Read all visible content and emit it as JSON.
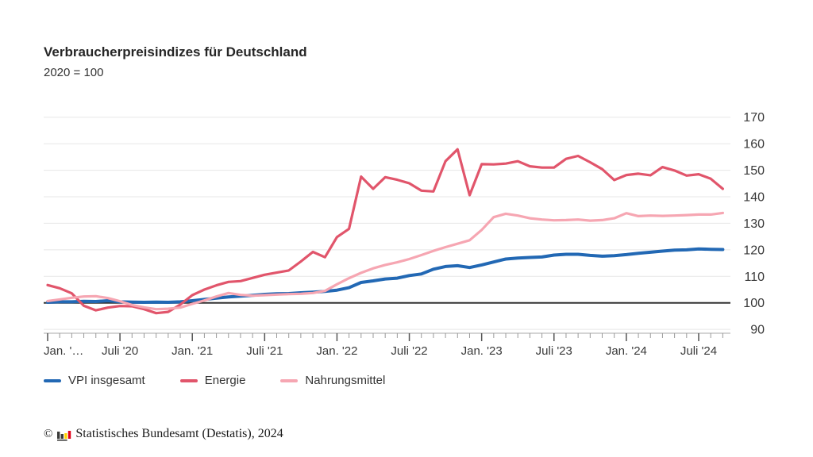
{
  "header": {
    "title": "Verbraucherpreisindizes für Deutschland",
    "subtitle": "2020 = 100"
  },
  "chart_data": {
    "type": "line",
    "title": "Verbraucherpreisindizes für Deutschland",
    "subtitle": "2020 = 100",
    "x_unit": "Monat (Jan. 2020 bis Sep. 2024)",
    "x_tick_labels": [
      "Jan. '…",
      "Juli '20",
      "Jan. '21",
      "Juli '21",
      "Jan. '22",
      "Juli '22",
      "Jan. '23",
      "Juli '23",
      "Jan. '24",
      "Juli '24"
    ],
    "x_tick_positions": [
      0,
      6,
      12,
      18,
      24,
      30,
      36,
      42,
      48,
      54
    ],
    "y_ticks": [
      90,
      100,
      110,
      120,
      130,
      140,
      150,
      160,
      170
    ],
    "ylim": [
      90,
      170
    ],
    "baseline_value": 100,
    "grid": true,
    "legend_position": "bottom",
    "colors": {
      "grid": "#e7e7e7",
      "baseline": "#333333",
      "axis": "#aaaaaa",
      "tick_minor": "#999999",
      "tick_major": "#555555",
      "text": "#3a3a3a"
    },
    "series": [
      {
        "name": "VPI insgesamt",
        "color": "#2268b4",
        "values": [
          100.2,
          100.4,
          100.4,
          100.6,
          100.5,
          100.8,
          100.4,
          100.3,
          100.2,
          100.3,
          100.2,
          100.4,
          100.8,
          101.3,
          101.8,
          102.2,
          102.5,
          102.8,
          103.2,
          103.4,
          103.5,
          103.8,
          104.0,
          104.3,
          104.8,
          105.7,
          107.7,
          108.3,
          109.0,
          109.3,
          110.3,
          110.9,
          112.7,
          113.7,
          114.0,
          113.3,
          114.3,
          115.4,
          116.5,
          116.9,
          117.1,
          117.3,
          118.0,
          118.3,
          118.3,
          117.9,
          117.6,
          117.8,
          118.2,
          118.7,
          119.1,
          119.5,
          119.9,
          120.0,
          120.3,
          120.2,
          120.1
        ]
      },
      {
        "name": "Energie",
        "color": "#e1556b",
        "values": [
          106.7,
          105.5,
          103.6,
          98.9,
          97.2,
          98.2,
          98.8,
          98.7,
          97.6,
          96.1,
          96.6,
          99.3,
          102.9,
          105.0,
          106.6,
          107.9,
          108.2,
          109.4,
          110.6,
          111.4,
          112.2,
          115.6,
          119.2,
          117.2,
          124.8,
          127.9,
          147.6,
          143.0,
          147.4,
          146.4,
          145.1,
          142.3,
          142.0,
          153.4,
          157.9,
          140.6,
          152.3,
          152.2,
          152.5,
          153.4,
          151.5,
          151.0,
          151.0,
          154.3,
          155.4,
          153.0,
          150.4,
          146.3,
          148.2,
          148.7,
          148.1,
          151.2,
          149.9,
          148.0,
          148.5,
          146.8,
          143.0
        ]
      },
      {
        "name": "Nahrungsmittel",
        "color": "#f6a6b2",
        "values": [
          100.7,
          101.3,
          101.9,
          102.4,
          102.5,
          101.8,
          100.6,
          99.2,
          98.3,
          97.6,
          97.8,
          98.2,
          99.6,
          100.9,
          102.4,
          103.7,
          103.0,
          102.7,
          102.9,
          103.1,
          103.3,
          103.4,
          103.7,
          104.5,
          107.0,
          109.3,
          111.3,
          113.0,
          114.3,
          115.3,
          116.5,
          118.0,
          119.6,
          121.0,
          122.3,
          123.6,
          127.5,
          132.3,
          133.6,
          132.9,
          131.9,
          131.4,
          131.1,
          131.2,
          131.4,
          131.0,
          131.2,
          131.9,
          133.8,
          132.7,
          132.9,
          132.8,
          132.9,
          133.1,
          133.3,
          133.3,
          133.9
        ]
      }
    ]
  },
  "footer": {
    "copyright": "©",
    "source": "Statistisches Bundesamt (Destatis), 2024",
    "logo": {
      "bar_colors": [
        "#3b3b3a",
        "#3b3b3a",
        "#ffd400",
        "#e2001a"
      ]
    }
  }
}
